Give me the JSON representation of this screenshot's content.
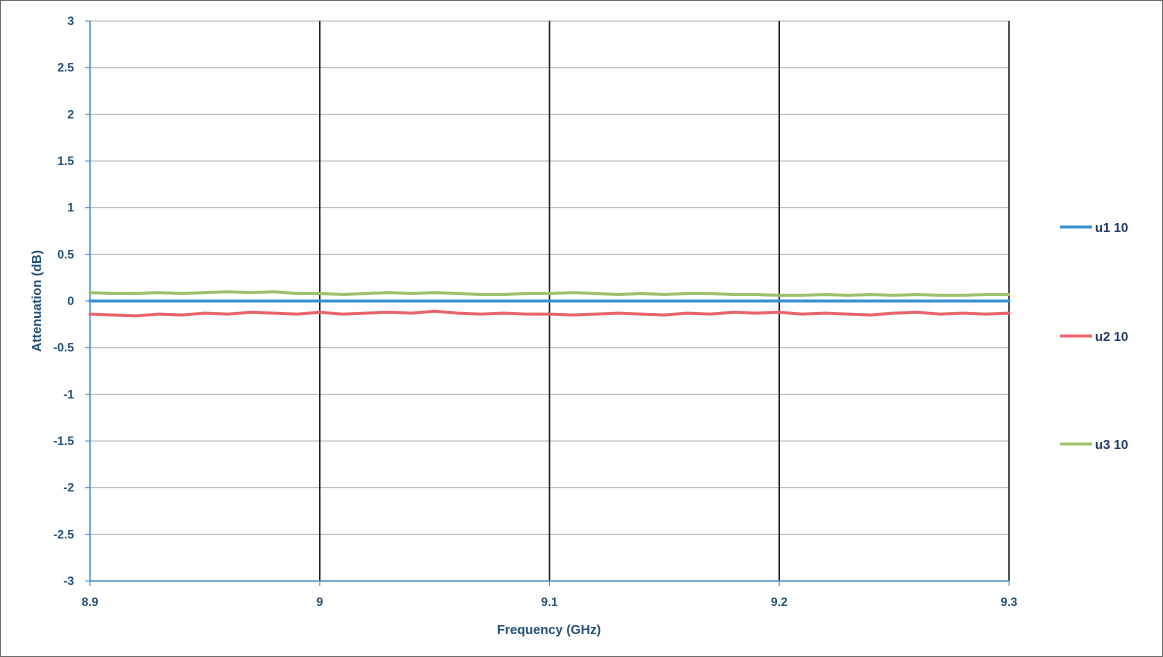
{
  "chart_data": {
    "type": "line",
    "title": "",
    "xlabel": "Frequency (GHz)",
    "ylabel": "Attenuation (dB)",
    "xlim": [
      8.9,
      9.3
    ],
    "ylim": [
      -3,
      3
    ],
    "x_ticks": [
      "8.9",
      "9",
      "9.1",
      "9.2",
      "9.3"
    ],
    "y_ticks": [
      "3",
      "2.5",
      "2",
      "1.5",
      "1",
      "0.5",
      "0",
      "-0.5",
      "-1",
      "-1.5",
      "-2",
      "-2.5",
      "-3"
    ],
    "grid": true,
    "legend_position": "right",
    "x": [
      8.9,
      8.91,
      8.92,
      8.93,
      8.94,
      8.95,
      8.96,
      8.97,
      8.98,
      8.99,
      9.0,
      9.01,
      9.02,
      9.03,
      9.04,
      9.05,
      9.06,
      9.07,
      9.08,
      9.09,
      9.1,
      9.11,
      9.12,
      9.13,
      9.14,
      9.15,
      9.16,
      9.17,
      9.18,
      9.19,
      9.2,
      9.21,
      9.22,
      9.23,
      9.24,
      9.25,
      9.26,
      9.27,
      9.28,
      9.29,
      9.3
    ],
    "series": [
      {
        "name": "u1 10",
        "color": "#3a8fd1",
        "values": [
          0.0,
          0.0,
          0.0,
          0.0,
          0.0,
          0.0,
          0.0,
          0.0,
          0.0,
          0.0,
          0.0,
          0.0,
          0.0,
          0.0,
          0.0,
          0.0,
          0.0,
          0.0,
          0.0,
          0.0,
          0.0,
          0.0,
          0.0,
          0.0,
          0.0,
          0.0,
          0.0,
          0.0,
          0.0,
          0.0,
          0.0,
          0.0,
          0.0,
          0.0,
          0.0,
          0.0,
          0.0,
          0.0,
          0.0,
          0.0,
          0.0
        ]
      },
      {
        "name": "u2 10",
        "color": "#e8646a",
        "values": [
          -0.14,
          -0.15,
          -0.16,
          -0.14,
          -0.15,
          -0.13,
          -0.14,
          -0.12,
          -0.13,
          -0.14,
          -0.12,
          -0.14,
          -0.13,
          -0.12,
          -0.13,
          -0.11,
          -0.13,
          -0.14,
          -0.13,
          -0.14,
          -0.14,
          -0.15,
          -0.14,
          -0.13,
          -0.14,
          -0.15,
          -0.13,
          -0.14,
          -0.12,
          -0.13,
          -0.12,
          -0.14,
          -0.13,
          -0.14,
          -0.15,
          -0.13,
          -0.12,
          -0.14,
          -0.13,
          -0.14,
          -0.13
        ]
      },
      {
        "name": "u3 10",
        "color": "#9cc068",
        "values": [
          0.09,
          0.08,
          0.08,
          0.09,
          0.08,
          0.09,
          0.1,
          0.09,
          0.1,
          0.08,
          0.08,
          0.07,
          0.08,
          0.09,
          0.08,
          0.09,
          0.08,
          0.07,
          0.07,
          0.08,
          0.08,
          0.09,
          0.08,
          0.07,
          0.08,
          0.07,
          0.08,
          0.08,
          0.07,
          0.07,
          0.06,
          0.06,
          0.07,
          0.06,
          0.07,
          0.06,
          0.07,
          0.06,
          0.06,
          0.07,
          0.07
        ]
      }
    ]
  }
}
